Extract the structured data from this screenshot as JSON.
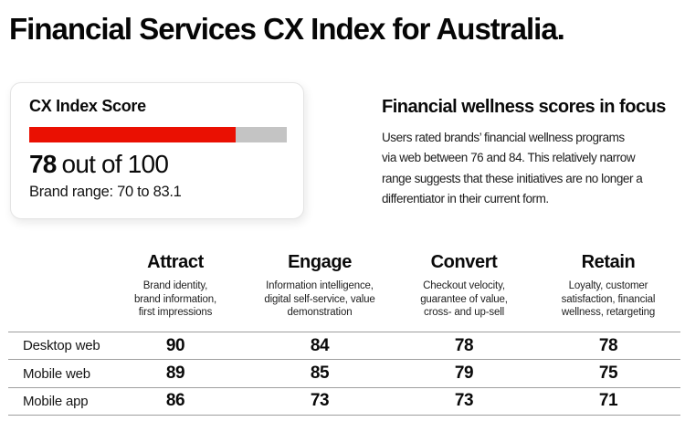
{
  "title": "Financial Services CX Index for Australia.",
  "score_card": {
    "heading": "CX Index Score",
    "score_value": "78",
    "score_suffix": "out of 100",
    "score_max": 100,
    "range_label": "Brand range: 70 to 83.1"
  },
  "focus_panel": {
    "heading": "Financial wellness scores in focus",
    "body_lines": [
      "Users rated brands’ financial wellness programs",
      "via web between 76 and 84. This relatively narrow",
      "range suggests that these initiatives are no longer a",
      "differentiator in their current form."
    ]
  },
  "funnel_table": {
    "columns": [
      {
        "label": "Attract",
        "description_lines": [
          "Brand identity,",
          "brand information,",
          "first impressions"
        ]
      },
      {
        "label": "Engage",
        "description_lines": [
          "Information intelligence,",
          "digital self-service, value",
          "demonstration"
        ]
      },
      {
        "label": "Convert",
        "description_lines": [
          "Checkout velocity,",
          "guarantee of value,",
          "cross- and up-sell"
        ]
      },
      {
        "label": "Retain",
        "description_lines": [
          "Loyalty, customer",
          "satisfaction, financial",
          "wellness, retargeting"
        ]
      }
    ],
    "rows": [
      {
        "label": "Desktop web",
        "values": [
          "90",
          "84",
          "78",
          "78"
        ]
      },
      {
        "label": "Mobile web",
        "values": [
          "89",
          "85",
          "79",
          "75"
        ]
      },
      {
        "label": "Mobile app",
        "values": [
          "86",
          "73",
          "73",
          "71"
        ]
      }
    ]
  },
  "colors": {
    "accent_red": "#ea1002",
    "bar_track": "#c4c4c4",
    "table_rule": "#9e9e9e",
    "text": "#0a0a0a"
  },
  "chart_data": [
    {
      "type": "bar",
      "orientation": "horizontal",
      "title": "CX Index Score",
      "categories": [
        "CX Index Score"
      ],
      "values": [
        78
      ],
      "xlim": [
        0,
        100
      ],
      "bar_color": "#ea1002",
      "track_color": "#c4c4c4",
      "annotations": [
        "78 out of 100",
        "Brand range: 70 to 83.1"
      ]
    },
    {
      "type": "table",
      "categories": [
        "Attract",
        "Engage",
        "Convert",
        "Retain"
      ],
      "series": [
        {
          "name": "Desktop web",
          "values": [
            90,
            84,
            78,
            78
          ]
        },
        {
          "name": "Mobile web",
          "values": [
            89,
            85,
            79,
            75
          ]
        },
        {
          "name": "Mobile app",
          "values": [
            86,
            73,
            73,
            71
          ]
        }
      ]
    }
  ]
}
